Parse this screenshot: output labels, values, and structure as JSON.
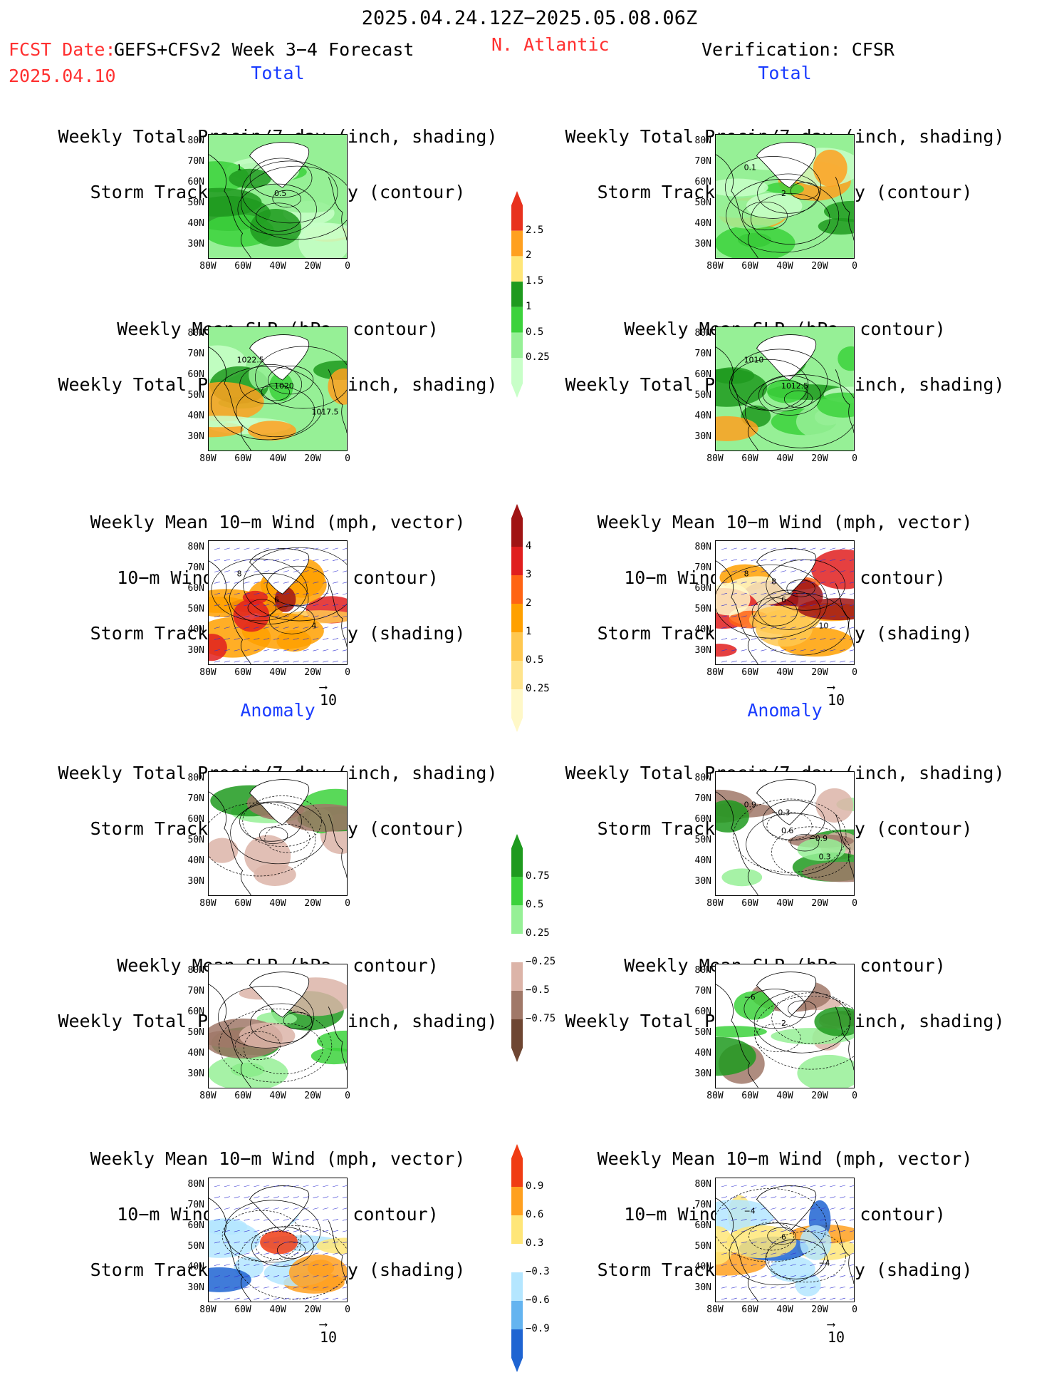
{
  "header": {
    "period": "2025.04.24.12Z−2025.05.08.06Z",
    "fcst_label": "FCST Date:",
    "model": "GEFS+CFSv2 Week 3−4 Forecast",
    "fcst_date": "2025.04.10",
    "region": "N. Atlantic",
    "verification": "Verification: CFSR"
  },
  "sections": {
    "total_left": "Total",
    "total_right": "Total",
    "anomaly_left": "Anomaly",
    "anomaly_right": "Anomaly"
  },
  "titles": {
    "precip_track": [
      "Weekly Total Precip/7−day (inch, shading)",
      "Storm Track Density/7−day (contour)"
    ],
    "slp_precip": [
      "Weekly Mean SLP (hPa, contour)",
      "Weekly Total Precip/7−day (inch, shading)"
    ],
    "wind_track": [
      "Weekly Mean 10−m Wind (mph, vector)",
      "10−m Wind Speed (mph, contour)",
      "Storm Track Density/7−day (shading)"
    ]
  },
  "axes": {
    "y": [
      "80N",
      "70N",
      "60N",
      "50N",
      "40N",
      "30N"
    ],
    "x": [
      "80W",
      "60W",
      "40W",
      "20W",
      "0"
    ]
  },
  "vector_ref": "10",
  "colorbars": {
    "precip_total": {
      "labels": [
        "2.5",
        "2",
        "1.5",
        "1",
        "0.5",
        "0.25"
      ],
      "colors": [
        "#e8321e",
        "#ffa020",
        "#ffe678",
        "#1e9a1e",
        "#3cd23c",
        "#96f096",
        "#c8ffc8"
      ]
    },
    "track_total": {
      "labels": [
        "4",
        "3",
        "2",
        "1",
        "0.5",
        "0.25"
      ],
      "colors": [
        "#a01414",
        "#e01e1e",
        "#ff6414",
        "#ffa000",
        "#ffc850",
        "#ffe48c",
        "#fff8c8"
      ]
    },
    "precip_anom": {
      "labels": [
        "0.75",
        "0.5",
        "0.25",
        "−0.25",
        "−0.5",
        "−0.75"
      ],
      "colors": [
        "#1e9a1e",
        "#3cd23c",
        "#96f096",
        "#ffffff",
        "#dcb4a8",
        "#a07868",
        "#6e4632"
      ]
    },
    "track_anom": {
      "labels": [
        "0.9",
        "0.6",
        "0.3",
        "−0.3",
        "−0.6",
        "−0.9"
      ],
      "colors": [
        "#f03c14",
        "#ffa020",
        "#ffe678",
        "#ffffff",
        "#b4e6ff",
        "#64b4f0",
        "#1e64d2"
      ]
    }
  },
  "contour_labels": {
    "l_total_precip": [
      "1",
      "0.5"
    ],
    "r_total_precip": [
      "0.1",
      "2"
    ],
    "l_total_slp": [
      "1022.5",
      "1020",
      "1017.5"
    ],
    "r_total_slp": [
      "1010",
      "1012.5"
    ],
    "l_total_wind": [
      "8",
      "6",
      "4"
    ],
    "r_total_wind": [
      "8",
      "6",
      "10",
      "8"
    ],
    "r_anom_precip": [
      "0.9",
      "0.6",
      "0.3",
      "−0.3",
      "−0.9"
    ],
    "r_anom_slp": [
      "−6",
      "2"
    ],
    "r_anom_wind": [
      "−4",
      "6",
      "−4"
    ]
  }
}
